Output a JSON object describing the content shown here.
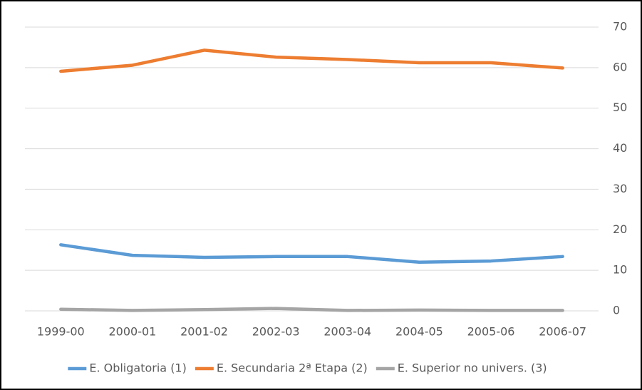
{
  "chart_data": {
    "type": "line",
    "categories": [
      "1999-00",
      "2000-01",
      "2001-02",
      "2002-03",
      "2003-04",
      "2004-05",
      "2005-06",
      "2006-07"
    ],
    "series": [
      {
        "name": "E. Obligatoria (1)",
        "color": "#5b9bd5",
        "values": [
          16.3,
          13.7,
          13.2,
          13.4,
          13.4,
          12.0,
          12.3,
          13.4
        ]
      },
      {
        "name": "E. Secundaria 2ª Etapa (2)",
        "color": "#ed7d31",
        "values": [
          59.1,
          60.6,
          64.3,
          62.6,
          62.0,
          61.2,
          61.2,
          59.9
        ]
      },
      {
        "name": "E. Superior no univers. (3)",
        "color": "#a5a5a5",
        "values": [
          0.4,
          0.1,
          0.3,
          0.6,
          0.1,
          0.2,
          0.1,
          0.1
        ]
      }
    ],
    "ylim": [
      0,
      70
    ],
    "yticks": [
      0,
      10,
      20,
      30,
      40,
      50,
      60,
      70
    ],
    "y_axis_side": "right",
    "grid": true,
    "legend": "bottom"
  }
}
